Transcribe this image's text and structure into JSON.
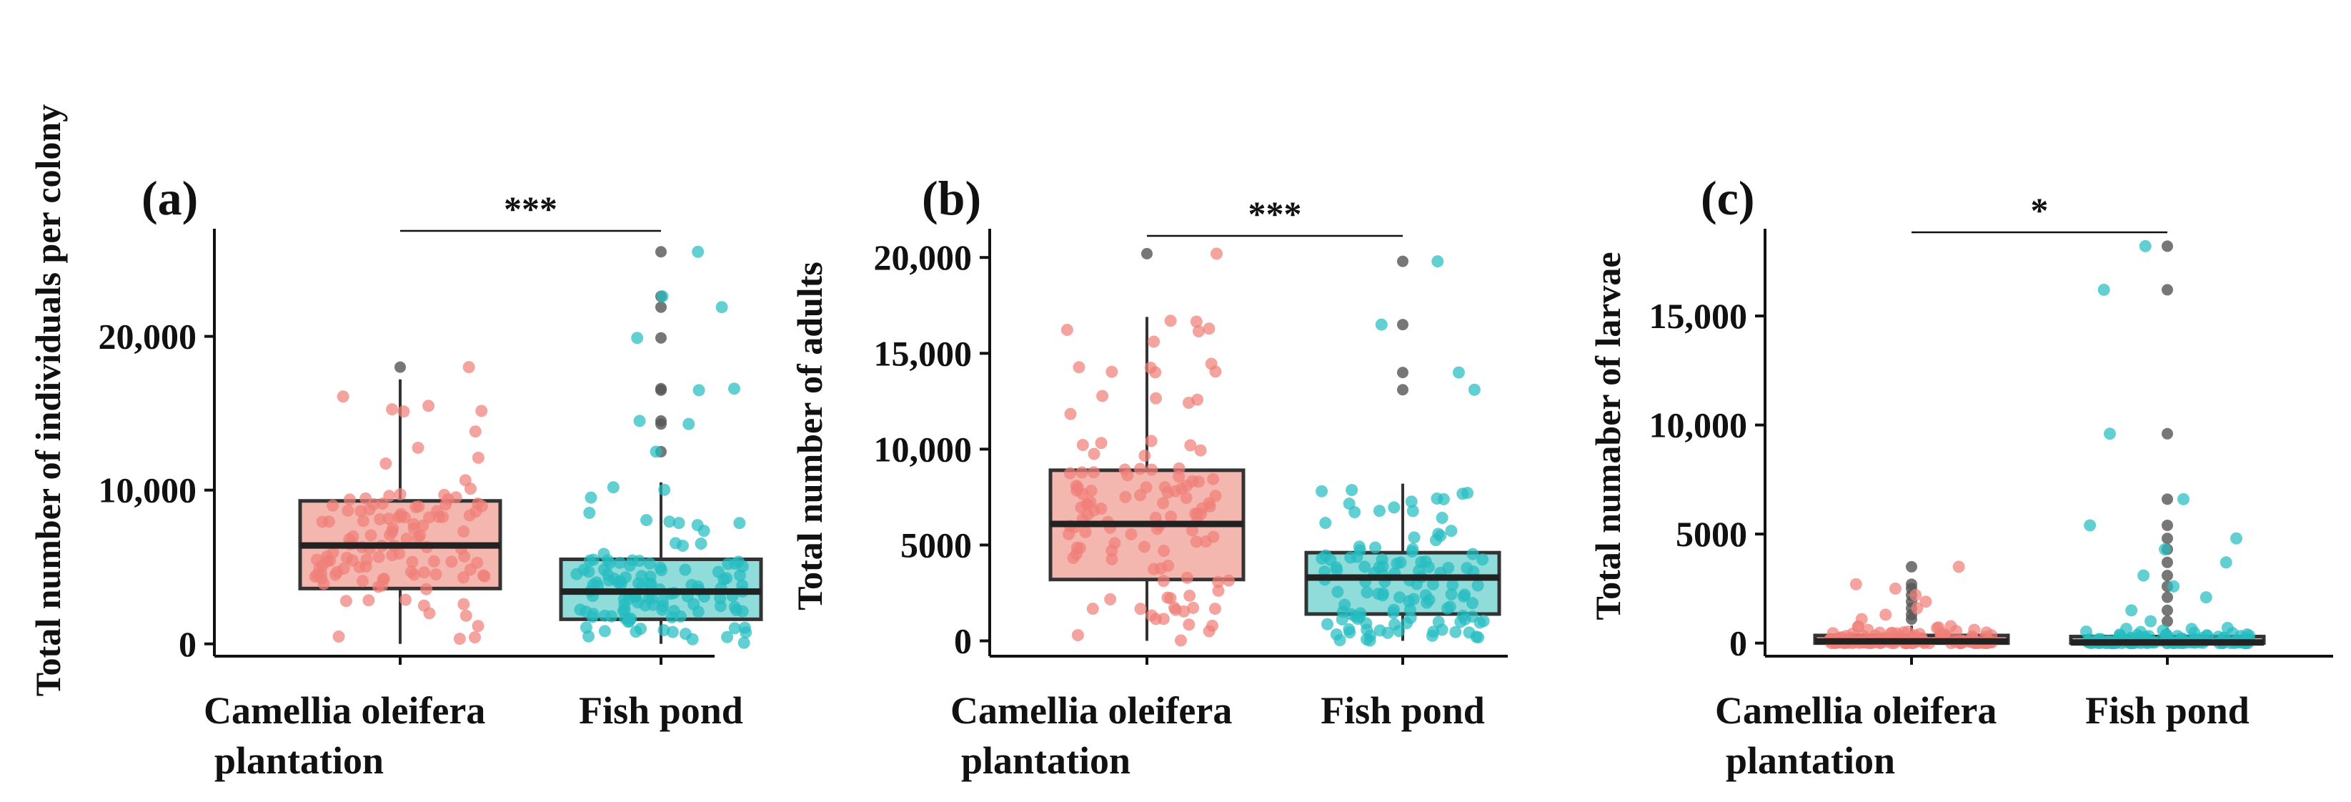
{
  "colors": {
    "plantation": "#f08078",
    "plantation_box": "#f4b7b0",
    "fishpond": "#26bcc0",
    "fishpond_box": "#8fdcda",
    "outlier": "#555555",
    "line": "#333333"
  },
  "chart_data": [
    {
      "type": "box",
      "panel_label": "(a)",
      "ylabel": "Total number of individuals per colony",
      "categories": [
        "Camellia oleifera plantation",
        "Fish pond"
      ],
      "category_lines": [
        [
          "Camellia oleifera",
          "plantation"
        ],
        [
          "Fish pond"
        ]
      ],
      "ylim": [
        -800,
        27000
      ],
      "yticks": [
        0,
        10000,
        20000
      ],
      "yticklabels": [
        "0",
        "10,000",
        "20,000"
      ],
      "significance": "***",
      "boxes": [
        {
          "q1": 3600,
          "median": 6400,
          "q3": 9300,
          "whisker_low": 0,
          "whisker_high": 17200,
          "outliers": [
            18000
          ]
        },
        {
          "q1": 1600,
          "median": 3400,
          "q3": 5500,
          "whisker_low": 0,
          "whisker_high": 10500,
          "outliers": [
            12500,
            14300,
            14500,
            16500,
            16600,
            19900,
            21900,
            22600,
            25500
          ]
        }
      ],
      "seed": 11
    },
    {
      "type": "box",
      "panel_label": "(b)",
      "ylabel": "Total number of adults",
      "categories": [
        "Camellia oleifera plantation",
        "Fish pond"
      ],
      "category_lines": [
        [
          "Camellia oleifera",
          "plantation"
        ],
        [
          "Fish pond"
        ]
      ],
      "ylim": [
        -800,
        21500
      ],
      "yticks": [
        0,
        5000,
        10000,
        15000,
        20000
      ],
      "yticklabels": [
        "0",
        "5000",
        "10,000",
        "15,000",
        "20,000"
      ],
      "significance": "***",
      "boxes": [
        {
          "q1": 3200,
          "median": 6100,
          "q3": 8900,
          "whisker_low": 0,
          "whisker_high": 16900,
          "outliers": [
            20200
          ]
        },
        {
          "q1": 1400,
          "median": 3300,
          "q3": 4600,
          "whisker_low": 0,
          "whisker_high": 8200,
          "outliers": [
            13100,
            14000,
            16500,
            19800
          ]
        }
      ],
      "seed": 29
    },
    {
      "type": "box",
      "panel_label": "(c)",
      "ylabel": "Total numaber of larvae",
      "categories": [
        "Camellia oleifera plantation",
        "Fish pond"
      ],
      "category_lines": [
        [
          "Camellia oleifera",
          "plantation"
        ],
        [
          "Fish pond"
        ]
      ],
      "ylim": [
        -600,
        19000
      ],
      "yticks": [
        0,
        5000,
        10000,
        15000
      ],
      "yticklabels": [
        "0",
        "5000",
        "10,000",
        "15,000"
      ],
      "significance": "*",
      "boxes": [
        {
          "q1": 0,
          "median": 80,
          "q3": 350,
          "whisker_low": 0,
          "whisker_high": 800,
          "outliers": [
            1100,
            1300,
            1600,
            1900,
            2200,
            2500,
            2700,
            3500
          ]
        },
        {
          "q1": 0,
          "median": 30,
          "q3": 300,
          "whisker_low": 0,
          "whisker_high": 700,
          "outliers": [
            1000,
            1500,
            2100,
            2600,
            3100,
            3700,
            4300,
            4800,
            5400,
            6600,
            9600,
            16200,
            18200
          ]
        }
      ],
      "seed": 47
    }
  ]
}
